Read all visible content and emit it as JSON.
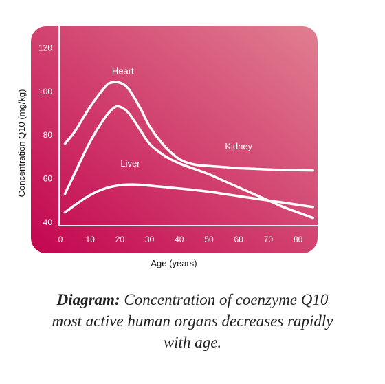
{
  "chart_data": {
    "type": "line",
    "title": "",
    "xlabel": "Age (years)",
    "ylabel": "Concentration Q10 (mg/kg)",
    "xlim": [
      0,
      85
    ],
    "ylim": [
      40,
      125
    ],
    "x_ticks": [
      0,
      10,
      20,
      30,
      40,
      50,
      60,
      70,
      80
    ],
    "y_ticks": [
      40,
      60,
      80,
      100,
      120
    ],
    "grid": false,
    "legend": "none (series labeled inline)",
    "background_gradient": [
      "#c3054f",
      "#e07f91"
    ],
    "line_color": "#ffffff",
    "series": [
      {
        "name": "Heart",
        "x": [
          1.5,
          5,
          10,
          15,
          17,
          20,
          23,
          27,
          30,
          35,
          40,
          45,
          50,
          55,
          60,
          65,
          70,
          75,
          80,
          85
        ],
        "y": [
          76,
          82,
          93,
          102,
          104,
          104,
          101,
          92,
          84,
          75,
          69,
          66.5,
          65.8,
          65.3,
          64.8,
          64.5,
          64.2,
          64,
          63.9,
          63.8
        ]
      },
      {
        "name": "Kidney",
        "x": [
          1.5,
          5,
          10,
          15,
          18,
          20,
          23,
          27,
          30,
          35,
          40,
          45,
          50,
          55,
          60,
          65,
          70,
          75,
          80,
          85
        ],
        "y": [
          53,
          63,
          77,
          88,
          92.5,
          93,
          90,
          82,
          76,
          70.5,
          67,
          64.5,
          62,
          59,
          56,
          53,
          50,
          47,
          44.5,
          42
        ]
      },
      {
        "name": "Liver",
        "x": [
          1.5,
          5,
          10,
          15,
          20,
          25,
          30,
          40,
          50,
          60,
          70,
          80,
          85
        ],
        "y": [
          44.5,
          48,
          52.5,
          55.5,
          57,
          57.3,
          56.8,
          55.5,
          54,
          52,
          50,
          48,
          47
        ]
      }
    ]
  },
  "labels": [
    {
      "text": "Heart",
      "x": 21,
      "y": 108
    },
    {
      "text": "Kidney",
      "x": 60,
      "y": 73.5
    },
    {
      "text": "Liver",
      "x": 23.5,
      "y": 65.5
    }
  ],
  "caption": {
    "bold": "Diagram:",
    "text": "Concentration of coenzyme Q10 most active human organs decreases rapidly with age."
  }
}
